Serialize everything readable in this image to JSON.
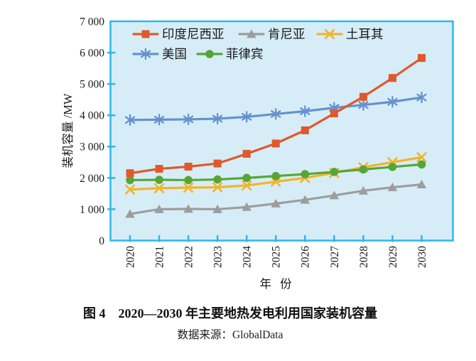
{
  "figure": {
    "caption": "图 4　2020—2030 年主要地热发电利用国家装机容量",
    "source": "数据来源：GlobalData"
  },
  "chart_data": {
    "type": "line",
    "title": "",
    "xlabel": "年 份",
    "ylabel": "装机容量 /MW",
    "x": [
      2020,
      2021,
      2022,
      2023,
      2024,
      2025,
      2026,
      2027,
      2028,
      2029,
      2030
    ],
    "x_tick_labels": [
      "2020",
      "2021",
      "2022",
      "2023",
      "2024",
      "2025",
      "2026",
      "2027",
      "2028",
      "2029",
      "2030"
    ],
    "y_ticks": [
      0,
      1000,
      2000,
      3000,
      4000,
      5000,
      6000,
      7000
    ],
    "y_tick_labels": [
      "0",
      "1 000",
      "2 000",
      "3 000",
      "4 000",
      "5 000",
      "6 000",
      "7 000"
    ],
    "ylim": [
      0,
      7000
    ],
    "grid": false,
    "legend_position": "inside-top-left",
    "plot_background": "#d6edf8",
    "axis_color": "#2fb7e8",
    "text_color": "#1a1a1a",
    "series": [
      {
        "name": "印度尼西亚",
        "slug": "indonesia",
        "color": "#e0592a",
        "marker": "square",
        "values": [
          2150,
          2290,
          2360,
          2460,
          2770,
          3100,
          3520,
          4060,
          4590,
          5190,
          5830
        ]
      },
      {
        "name": "肯尼亚",
        "slug": "kenya",
        "color": "#9d9d9c",
        "marker": "triangle",
        "values": [
          850,
          1000,
          1010,
          1000,
          1070,
          1180,
          1300,
          1440,
          1590,
          1700,
          1790
        ]
      },
      {
        "name": "土耳其",
        "slug": "turkey",
        "color": "#f3b32b",
        "marker": "x",
        "values": [
          1630,
          1670,
          1690,
          1700,
          1760,
          1880,
          2000,
          2160,
          2340,
          2500,
          2660
        ]
      },
      {
        "name": "美国",
        "slug": "usa",
        "color": "#6591cd",
        "marker": "asterisk",
        "values": [
          3850,
          3860,
          3870,
          3890,
          3950,
          4040,
          4130,
          4240,
          4330,
          4430,
          4570
        ]
      },
      {
        "name": "菲律宾",
        "slug": "philippines",
        "color": "#56a636",
        "marker": "circle",
        "values": [
          1930,
          1940,
          1930,
          1950,
          2000,
          2060,
          2120,
          2190,
          2270,
          2350,
          2430
        ]
      }
    ]
  }
}
